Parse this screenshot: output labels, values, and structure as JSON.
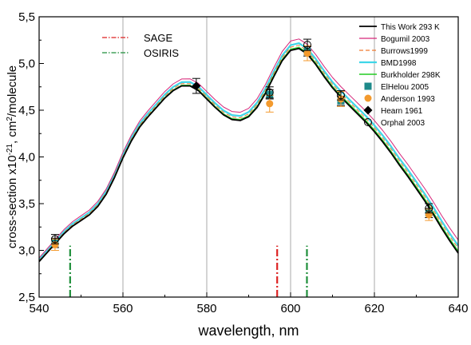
{
  "chart_data": {
    "type": "line",
    "title": "",
    "xlabel": "wavelength, nm",
    "ylabel_parts": [
      "cross-section x10",
      "-21",
      ", cm",
      "2",
      "/molecule"
    ],
    "xlim": [
      540,
      640
    ],
    "ylim": [
      2.5,
      5.5
    ],
    "xticks": [
      540,
      560,
      580,
      600,
      620,
      640
    ],
    "xtick_labels": [
      "540",
      "560",
      "580",
      "600",
      "620",
      "640"
    ],
    "yticks": [
      2.5,
      3.0,
      3.5,
      4.0,
      4.5,
      5.0,
      5.5
    ],
    "ytick_labels": [
      "2,5",
      "3,0",
      "3,5",
      "4,0",
      "4,5",
      "5,0",
      "5,5"
    ],
    "vertical_gridlines": [
      560,
      580,
      600,
      620
    ],
    "legend_position": "top-right",
    "base_curve": {
      "x": [
        540,
        542,
        544,
        546,
        548,
        550,
        552,
        554,
        556,
        558,
        560,
        562,
        564,
        566,
        568,
        570,
        572,
        574,
        576,
        578,
        580,
        582,
        584,
        586,
        588,
        590,
        592,
        594,
        596,
        598,
        600,
        602,
        604,
        606,
        608,
        610,
        612,
        614,
        616,
        618,
        620,
        622,
        624,
        626,
        628,
        630,
        632,
        634,
        636,
        638,
        640
      ],
      "y": [
        2.88,
        2.98,
        3.08,
        3.18,
        3.26,
        3.32,
        3.38,
        3.47,
        3.6,
        3.78,
        3.99,
        4.17,
        4.32,
        4.43,
        4.53,
        4.63,
        4.71,
        4.76,
        4.76,
        4.71,
        4.62,
        4.53,
        4.45,
        4.4,
        4.39,
        4.43,
        4.53,
        4.68,
        4.86,
        5.03,
        5.14,
        5.16,
        5.1,
        4.99,
        4.86,
        4.74,
        4.64,
        4.55,
        4.46,
        4.37,
        4.27,
        4.16,
        4.04,
        3.91,
        3.79,
        3.66,
        3.53,
        3.39,
        3.24,
        3.1,
        2.97
      ]
    },
    "series": [
      {
        "name": "This Work 293 K",
        "color": "#000000",
        "style": "solid",
        "width": 1.8,
        "offset": [
          0.0,
          0.0
        ]
      },
      {
        "name": "Bogumil 2003",
        "color": "#d6287a",
        "style": "solid",
        "width": 1.0,
        "offset": [
          0.04,
          0.14
        ]
      },
      {
        "name": "Burrows1999",
        "color": "#f07a30",
        "style": "dashed",
        "width": 1.0,
        "offset": [
          0.01,
          0.05
        ]
      },
      {
        "name": "BMD1998",
        "color": "#3fd6e8",
        "style": "solid",
        "width": 2.2,
        "offset": [
          0.02,
          0.08
        ]
      },
      {
        "name": "Burkholder 298K",
        "color": "#22cc22",
        "style": "solid",
        "width": 1.4,
        "offset": [
          0.0,
          0.02
        ]
      }
    ],
    "point_series": [
      {
        "name": "ElHelou 2005",
        "marker": "square",
        "color": "#1e8a8a",
        "points": [
          {
            "x": 543.8,
            "y": 3.08,
            "err": 0.05
          },
          {
            "x": 595,
            "y": 4.67,
            "err": 0.05
          },
          {
            "x": 604,
            "y": 5.13,
            "err": 0.05
          },
          {
            "x": 612,
            "y": 4.6,
            "err": 0.05
          },
          {
            "x": 633,
            "y": 3.4,
            "err": 0.05
          }
        ]
      },
      {
        "name": "Anderson 1993",
        "marker": "circle",
        "color": "#f39a2e",
        "points": [
          {
            "x": 543.8,
            "y": 3.06,
            "err": 0.06
          },
          {
            "x": 595,
            "y": 4.57,
            "err": 0.09
          },
          {
            "x": 604,
            "y": 5.11,
            "err": 0.08
          },
          {
            "x": 612,
            "y": 4.62,
            "err": 0.08
          },
          {
            "x": 633,
            "y": 3.38,
            "err": 0.06
          }
        ]
      },
      {
        "name": "Hearn 1961",
        "marker": "diamond",
        "color": "#000000",
        "points": [
          {
            "x": 577.5,
            "y": 4.76,
            "err": 0.08
          }
        ]
      },
      {
        "name": "Orphal 2003",
        "marker": "open-circle",
        "color": "#000000",
        "points": [
          {
            "x": 543.8,
            "y": 3.12,
            "err": 0.05
          },
          {
            "x": 595,
            "y": 4.69,
            "err": 0.06
          },
          {
            "x": 604,
            "y": 5.2,
            "err": 0.06
          },
          {
            "x": 612,
            "y": 4.66,
            "err": 0.05
          },
          {
            "x": 633,
            "y": 3.45,
            "err": 0.05
          }
        ]
      }
    ],
    "annotations": [
      {
        "name": "SAGE",
        "color": "#dd2222",
        "style": "dashdot",
        "x": 596.8,
        "y_range": [
          2.5,
          3.05
        ]
      },
      {
        "name": "OSIRIS",
        "color": "#1f8f3a",
        "style": "dashdot",
        "x": [
          547.4,
          603.9
        ],
        "y_range": [
          2.5,
          3.05
        ]
      }
    ]
  }
}
